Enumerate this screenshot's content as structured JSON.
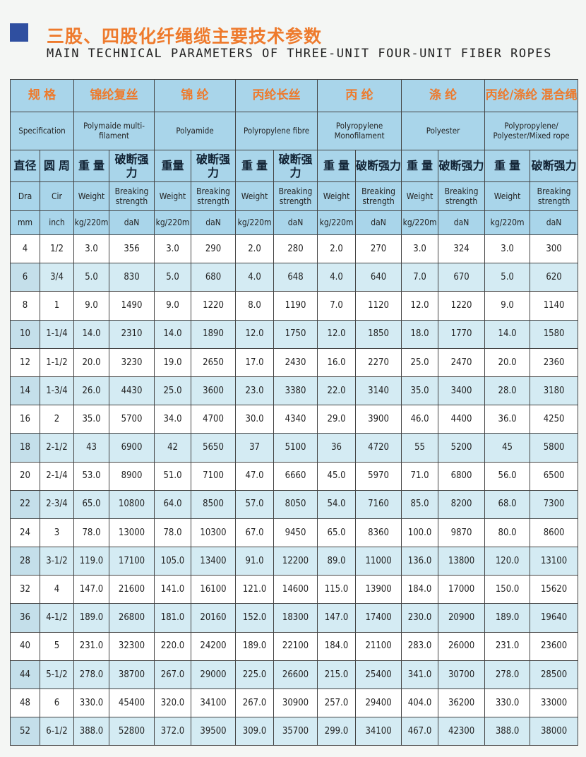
{
  "title_cn": "三股、四股化纤绳缆主要技术参数",
  "title_en": "MAIN TECHNICAL PARAMETERS OF THREE-UNIT FOUR-UNIT FIBER ROPES",
  "header": {
    "cn": [
      "规 格",
      "锦纶复丝",
      "锦 纶",
      "丙纶长丝",
      "丙 纶",
      "涤 纶",
      "丙纶/涤纶 混合绳"
    ],
    "en": [
      "Specification",
      "Polymaide multi-filament",
      "Polyamide",
      "Polyropylene fibre",
      "Polyropylene Monofilament",
      "Polyester",
      "Polypropylene/ Polyester/Mixed rope"
    ],
    "cols_cn": [
      "直径",
      "圆 周",
      "重 量",
      "破断强力",
      "重量",
      "破断强力",
      "重 量",
      "破断强力",
      "重 量",
      "破断强力",
      "重 量",
      "破断强力",
      "重 量",
      "破断强力"
    ],
    "cols_en": [
      "Dra",
      "Cir",
      "Weight",
      "Breaking strength",
      "Weight",
      "Breaking strength",
      "Weight",
      "Breaking strength",
      "Weight",
      "Breaking strength",
      "Weight",
      "Breaking strength",
      "Weight",
      "Breaking strength"
    ],
    "units": [
      "mm",
      "inch",
      "kg/220m",
      "daN",
      "kg/220m",
      "daN",
      "kg/220m",
      "daN",
      "kg/220m",
      "daN",
      "kg/220m",
      "daN",
      "kg/220m",
      "daN"
    ]
  },
  "rows": [
    [
      "4",
      "1/2",
      "3.0",
      "356",
      "3.0",
      "290",
      "2.0",
      "280",
      "2.0",
      "270",
      "3.0",
      "324",
      "3.0",
      "300"
    ],
    [
      "6",
      "3/4",
      "5.0",
      "830",
      "5.0",
      "680",
      "4.0",
      "648",
      "4.0",
      "640",
      "7.0",
      "670",
      "5.0",
      "620"
    ],
    [
      "8",
      "1",
      "9.0",
      "1490",
      "9.0",
      "1220",
      "8.0",
      "1190",
      "7.0",
      "1120",
      "12.0",
      "1220",
      "9.0",
      "1140"
    ],
    [
      "10",
      "1-1/4",
      "14.0",
      "2310",
      "14.0",
      "1890",
      "12.0",
      "1750",
      "12.0",
      "1850",
      "18.0",
      "1770",
      "14.0",
      "1580"
    ],
    [
      "12",
      "1-1/2",
      "20.0",
      "3230",
      "19.0",
      "2650",
      "17.0",
      "2430",
      "16.0",
      "2270",
      "25.0",
      "2470",
      "20.0",
      "2360"
    ],
    [
      "14",
      "1-3/4",
      "26.0",
      "4430",
      "25.0",
      "3600",
      "23.0",
      "3380",
      "22.0",
      "3140",
      "35.0",
      "3400",
      "28.0",
      "3180"
    ],
    [
      "16",
      "2",
      "35.0",
      "5700",
      "34.0",
      "4700",
      "30.0",
      "4340",
      "29.0",
      "3900",
      "46.0",
      "4400",
      "36.0",
      "4250"
    ],
    [
      "18",
      "2-1/2",
      "43",
      "6900",
      "42",
      "5650",
      "37",
      "5100",
      "36",
      "4720",
      "55",
      "5200",
      "45",
      "5800"
    ],
    [
      "20",
      "2-1/4",
      "53.0",
      "8900",
      "51.0",
      "7100",
      "47.0",
      "6660",
      "45.0",
      "5970",
      "71.0",
      "6800",
      "56.0",
      "6500"
    ],
    [
      "22",
      "2-3/4",
      "65.0",
      "10800",
      "64.0",
      "8500",
      "57.0",
      "8050",
      "54.0",
      "7160",
      "85.0",
      "8200",
      "68.0",
      "7300"
    ],
    [
      "24",
      "3",
      "78.0",
      "13000",
      "78.0",
      "10300",
      "67.0",
      "9450",
      "65.0",
      "8360",
      "100.0",
      "9870",
      "80.0",
      "8600"
    ],
    [
      "28",
      "3-1/2",
      "119.0",
      "17100",
      "105.0",
      "13400",
      "91.0",
      "12200",
      "89.0",
      "11000",
      "136.0",
      "13800",
      "120.0",
      "13100"
    ],
    [
      "32",
      "4",
      "147.0",
      "21600",
      "141.0",
      "16100",
      "121.0",
      "14600",
      "115.0",
      "13900",
      "184.0",
      "17000",
      "150.0",
      "15620"
    ],
    [
      "36",
      "4-1/2",
      "189.0",
      "26800",
      "181.0",
      "20160",
      "152.0",
      "18300",
      "147.0",
      "17400",
      "230.0",
      "20900",
      "189.0",
      "19640"
    ],
    [
      "40",
      "5",
      "231.0",
      "32300",
      "220.0",
      "24200",
      "189.0",
      "22100",
      "184.0",
      "21100",
      "283.0",
      "26000",
      "231.0",
      "23600"
    ],
    [
      "44",
      "5-1/2",
      "278.0",
      "38700",
      "267.0",
      "29000",
      "225.0",
      "26600",
      "215.0",
      "25400",
      "341.0",
      "30700",
      "278.0",
      "28500"
    ],
    [
      "48",
      "6",
      "330.0",
      "45400",
      "320.0",
      "34100",
      "267.0",
      "30900",
      "257.0",
      "29400",
      "404.0",
      "36200",
      "330.0",
      "33000"
    ],
    [
      "52",
      "6-1/2",
      "388.0",
      "52800",
      "372.0",
      "39500",
      "309.0",
      "35700",
      "299.0",
      "34100",
      "467.0",
      "42300",
      "388.0",
      "38000"
    ]
  ],
  "colors": {
    "accent": "#ee7a2c",
    "header_bg": "#a9d5ea",
    "alt_row": "#d4ebf3",
    "square": "#2f4fa0"
  }
}
